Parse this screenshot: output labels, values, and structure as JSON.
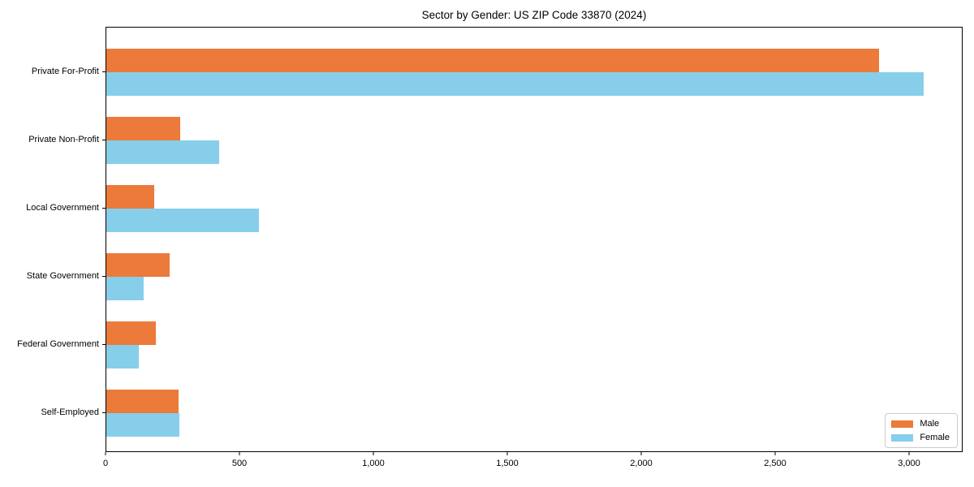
{
  "title": "Sector by Gender: US ZIP Code 33870 (2024)",
  "chart_data": {
    "type": "bar",
    "orientation": "horizontal",
    "title": "Sector by Gender: US ZIP Code 33870 (2024)",
    "categories": [
      "Private For-Profit",
      "Private Non-Profit",
      "Local Government",
      "State Government",
      "Federal Government",
      "Self-Employed"
    ],
    "series": [
      {
        "name": "Male",
        "color": "#eb7a3b",
        "values": [
          2885,
          275,
          180,
          235,
          185,
          270
        ]
      },
      {
        "name": "Female",
        "color": "#87ceeb",
        "values": [
          3050,
          420,
          570,
          140,
          120,
          273
        ]
      }
    ],
    "xlabel": "",
    "ylabel": "",
    "xlim": [
      0,
      3200
    ],
    "xticks": [
      0,
      500,
      1000,
      1500,
      2000,
      2500,
      3000
    ],
    "xtick_labels": [
      "0",
      "500",
      "1,000",
      "1,500",
      "2,000",
      "2,500",
      "3,000"
    ],
    "legend_position": "lower right",
    "grid": false,
    "axis_color": "#000000"
  }
}
